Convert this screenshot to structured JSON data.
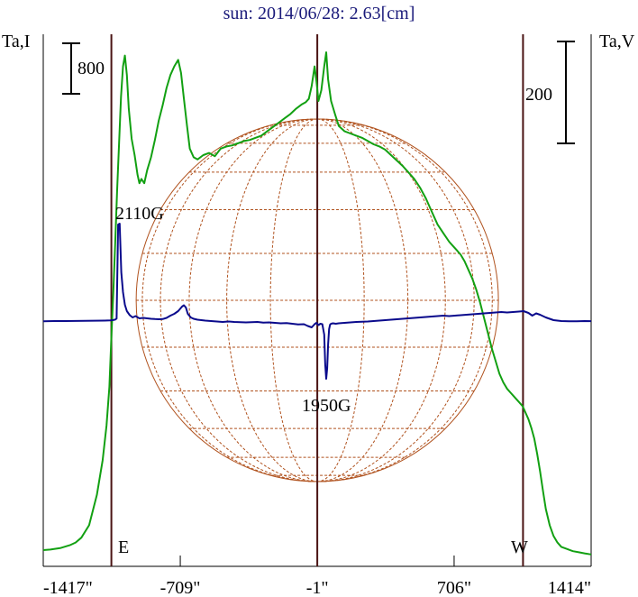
{
  "chart_data": {
    "type": "line",
    "title": "sun: 2014/06/28: 2.63[cm]",
    "left_axis_label": "Ta,I",
    "right_axis_label": "Ta,V",
    "left_scale_bar_label": "800",
    "right_scale_bar_label": "200",
    "x_tick_labels": [
      "-1417\"",
      "-709\"",
      "-1\"",
      "706\"",
      "1414\""
    ],
    "x_ticks": [
      -1417,
      -709,
      -1,
      706,
      1414
    ],
    "xlim": [
      -1417,
      1414
    ],
    "limb_label_east": "E",
    "limb_label_west": "W",
    "limb_positions": [
      -1065,
      1062
    ],
    "center_line": -1,
    "annotations": [
      {
        "text": "2110G",
        "x": -1030
      },
      {
        "text": "1950G",
        "x": 70
      }
    ],
    "colors": {
      "intensity": "#12a012",
      "polarization": "#0a0a8c",
      "disk_grid": "#b0521e",
      "title": "#1a1a7a",
      "vertical_lines": "#4a1414"
    },
    "series": [
      {
        "name": "Ta,I",
        "units": "relative",
        "x": [
          -1417,
          -1380,
          -1330,
          -1280,
          -1250,
          -1220,
          -1180,
          -1140,
          -1110,
          -1090,
          -1075,
          -1065,
          -1055,
          -1045,
          -1035,
          -1025,
          -1015,
          -1005,
          -995,
          -985,
          -975,
          -960,
          -945,
          -930,
          -920,
          -910,
          -895,
          -880,
          -860,
          -840,
          -820,
          -800,
          -780,
          -760,
          -740,
          -720,
          -705,
          -690,
          -675,
          -660,
          -640,
          -620,
          -590,
          -560,
          -530,
          -500,
          -470,
          -440,
          -410,
          -380,
          -350,
          -320,
          -290,
          -260,
          -230,
          -200,
          -170,
          -140,
          -110,
          -80,
          -60,
          -45,
          -30,
          -15,
          -5,
          5,
          20,
          35,
          45,
          55,
          70,
          90,
          110,
          140,
          170,
          200,
          230,
          260,
          290,
          320,
          350,
          380,
          410,
          440,
          470,
          500,
          530,
          560,
          590,
          620,
          650,
          680,
          700,
          720,
          740,
          760,
          780,
          800,
          820,
          840,
          860,
          880,
          900,
          920,
          940,
          960,
          980,
          1000,
          1020,
          1040,
          1060,
          1075,
          1090,
          1105,
          1120,
          1135,
          1150,
          1165,
          1180,
          1200,
          1220,
          1240,
          1260,
          1290,
          1320,
          1350,
          1380,
          1414
        ],
        "y": [
          50,
          55,
          68,
          95,
          120,
          165,
          280,
          560,
          880,
          1200,
          1560,
          2020,
          2420,
          2900,
          3380,
          3820,
          4240,
          4520,
          4620,
          4440,
          4130,
          3850,
          3700,
          3520,
          3440,
          3480,
          3440,
          3560,
          3680,
          3840,
          4020,
          4160,
          4320,
          4440,
          4520,
          4580,
          4460,
          4220,
          3980,
          3760,
          3680,
          3660,
          3700,
          3720,
          3690,
          3760,
          3780,
          3790,
          3810,
          3830,
          3840,
          3860,
          3880,
          3920,
          3960,
          4000,
          4040,
          4080,
          4130,
          4170,
          4190,
          4220,
          4340,
          4520,
          4380,
          4200,
          4300,
          4520,
          4650,
          4400,
          4200,
          4080,
          3970,
          3920,
          3900,
          3880,
          3860,
          3830,
          3800,
          3780,
          3750,
          3700,
          3650,
          3600,
          3540,
          3480,
          3400,
          3300,
          3180,
          3060,
          2980,
          2900,
          2860,
          2820,
          2780,
          2720,
          2640,
          2560,
          2460,
          2340,
          2200,
          2060,
          1920,
          1800,
          1680,
          1600,
          1540,
          1500,
          1460,
          1420,
          1380,
          1320,
          1260,
          1180,
          1080,
          940,
          780,
          600,
          430,
          280,
          180,
          120,
          80,
          60,
          40,
          30,
          20,
          10
        ]
      },
      {
        "name": "Ta,V",
        "units": "relative",
        "x": [
          -1417,
          -1360,
          -1300,
          -1250,
          -1200,
          -1150,
          -1100,
          -1070,
          -1055,
          -1045,
          -1038,
          -1030,
          -1022,
          -1014,
          -1005,
          -995,
          -985,
          -970,
          -955,
          -940,
          -920,
          -900,
          -880,
          -860,
          -840,
          -820,
          -800,
          -780,
          -760,
          -740,
          -720,
          -700,
          -690,
          -680,
          -670,
          -655,
          -640,
          -620,
          -600,
          -580,
          -550,
          -520,
          -490,
          -460,
          -430,
          -400,
          -370,
          -340,
          -310,
          -280,
          -250,
          -220,
          -190,
          -160,
          -130,
          -100,
          -70,
          -50,
          -30,
          -15,
          -5,
          5,
          15,
          25,
          35,
          40,
          45,
          50,
          55,
          60,
          65,
          70,
          80,
          95,
          110,
          140,
          170,
          200,
          230,
          260,
          290,
          320,
          350,
          380,
          410,
          440,
          470,
          500,
          530,
          560,
          590,
          620,
          650,
          680,
          710,
          740,
          770,
          800,
          830,
          860,
          890,
          920,
          950,
          980,
          1010,
          1040,
          1065,
          1090,
          1110,
          1130,
          1150,
          1180,
          1220,
          1260,
          1300,
          1340,
          1380,
          1414
        ],
        "y": [
          -2,
          0,
          0,
          1,
          3,
          4,
          5,
          7,
          11,
          16,
          28,
          1070,
          1080,
          540,
          320,
          180,
          110,
          65,
          40,
          55,
          30,
          35,
          30,
          25,
          22,
          20,
          22,
          35,
          60,
          80,
          110,
          160,
          175,
          150,
          80,
          40,
          25,
          15,
          10,
          5,
          0,
          -5,
          -10,
          -5,
          -10,
          -12,
          -15,
          -12,
          -10,
          -18,
          -15,
          -20,
          -25,
          -22,
          -30,
          -38,
          -35,
          -55,
          -70,
          -35,
          -20,
          -45,
          -30,
          -35,
          -150,
          -480,
          -640,
          -520,
          -260,
          -90,
          -40,
          -30,
          -25,
          -30,
          -25,
          -20,
          -15,
          -10,
          -8,
          -5,
          0,
          5,
          10,
          15,
          20,
          25,
          30,
          35,
          40,
          45,
          50,
          55,
          60,
          55,
          60,
          65,
          70,
          75,
          80,
          85,
          90,
          95,
          100,
          95,
          100,
          105,
          110,
          90,
          60,
          85,
          70,
          40,
          10,
          0,
          -2,
          -2,
          0,
          -1
        ]
      }
    ]
  }
}
